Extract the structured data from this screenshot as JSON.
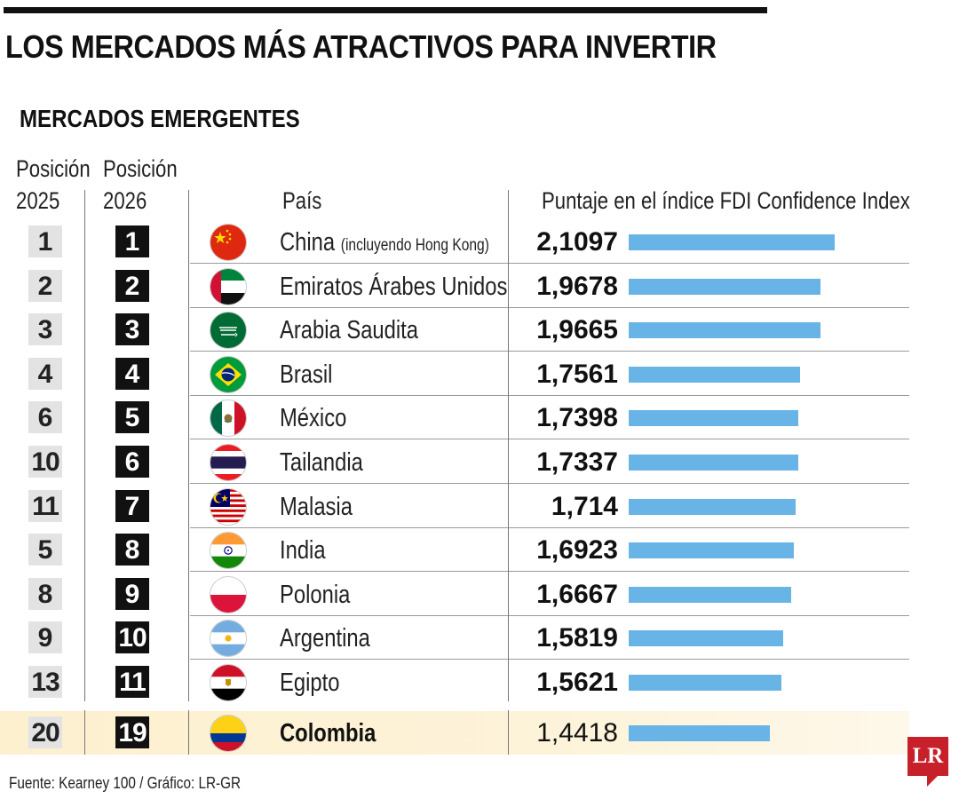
{
  "title": "LOS MERCADOS MÁS ATRACTIVOS PARA INVERTIR",
  "subtitle": "MERCADOS EMERGENTES",
  "headers": {
    "pos2025_line1": "Posición",
    "pos2025_line2": "2025",
    "pos2026_line1": "Posición",
    "pos2026_line2": "2026",
    "country": "País",
    "score": "Puntaje en el índice FDI Confidence Index"
  },
  "rows": [
    {
      "pos2025": "1",
      "pos2026": "1",
      "country": "China",
      "note": "(incluyendo Hong Kong)",
      "score": "2,1097",
      "flag": "china-flag-icon"
    },
    {
      "pos2025": "2",
      "pos2026": "2",
      "country": "Emiratos Árabes Unidos",
      "score": "1,9678",
      "flag": "uae-flag-icon"
    },
    {
      "pos2025": "3",
      "pos2026": "3",
      "country": "Arabia Saudita",
      "score": "1,9665",
      "flag": "saudi-arabia-flag-icon"
    },
    {
      "pos2025": "4",
      "pos2026": "4",
      "country": "Brasil",
      "score": "1,7561",
      "flag": "brazil-flag-icon"
    },
    {
      "pos2025": "6",
      "pos2026": "5",
      "country": "México",
      "score": "1,7398",
      "flag": "mexico-flag-icon"
    },
    {
      "pos2025": "10",
      "pos2026": "6",
      "country": "Tailandia",
      "score": "1,7337",
      "flag": "thailand-flag-icon"
    },
    {
      "pos2025": "11",
      "pos2026": "7",
      "country": "Malasia",
      "score": "1,714",
      "flag": "malaysia-flag-icon"
    },
    {
      "pos2025": "5",
      "pos2026": "8",
      "country": "India",
      "score": "1,6923",
      "flag": "india-flag-icon"
    },
    {
      "pos2025": "8",
      "pos2026": "9",
      "country": "Polonia",
      "score": "1,6667",
      "flag": "poland-flag-icon"
    },
    {
      "pos2025": "9",
      "pos2026": "10",
      "country": "Argentina",
      "score": "1,5819",
      "flag": "argentina-flag-icon"
    },
    {
      "pos2025": "13",
      "pos2026": "11",
      "country": "Egipto",
      "score": "1,5621",
      "flag": "egypt-flag-icon"
    },
    {
      "pos2025": "20",
      "pos2026": "19",
      "country": "Colombia",
      "score": "1,4418",
      "flag": "colombia-flag-icon",
      "highlight": true
    }
  ],
  "chart_data": {
    "type": "bar",
    "orientation": "horizontal",
    "title": "LOS MERCADOS MÁS ATRACTIVOS PARA INVERTIR",
    "subtitle": "MERCADOS EMERGENTES",
    "categories": [
      "China",
      "Emiratos Árabes Unidos",
      "Arabia Saudita",
      "Brasil",
      "México",
      "Tailandia",
      "Malasia",
      "India",
      "Polonia",
      "Argentina",
      "Egipto",
      "Colombia"
    ],
    "values": [
      2.1097,
      1.9678,
      1.9665,
      1.7561,
      1.7398,
      1.7337,
      1.714,
      1.6923,
      1.6667,
      1.5819,
      1.5621,
      1.4418
    ],
    "xlabel": "Puntaje en el índice FDI Confidence Index",
    "ylabel": "País",
    "xlim": [
      0,
      2.1097
    ],
    "grid": false,
    "highlighted_category": "Colombia"
  },
  "source": "Fuente: Kearney 100 / Gráfico: LR-GR",
  "logo_text": "LR",
  "colors": {
    "bar": "#69b4e6",
    "highlight": "#fdf0cf",
    "rank_box": "#111111",
    "prev_box": "#e3e3e3",
    "logo": "#c8202a"
  }
}
